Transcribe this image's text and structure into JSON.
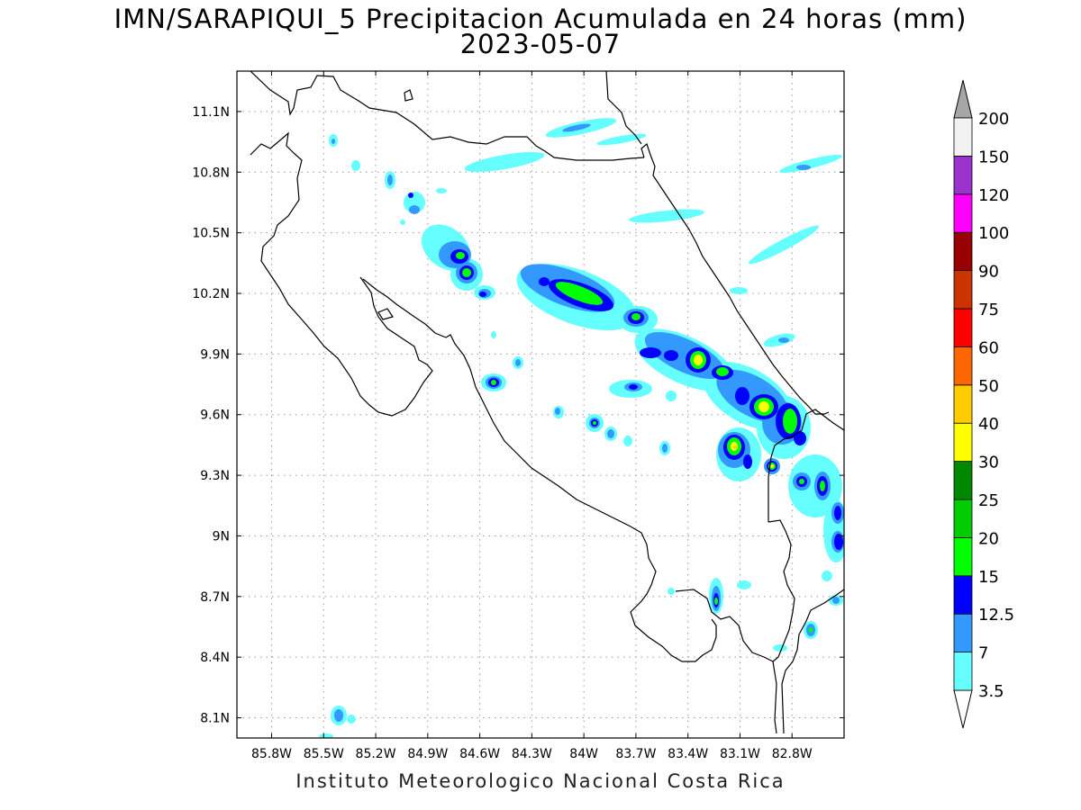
{
  "title": {
    "line1": "IMN/SARAPIQUI_5 Precipitacion Acumulada en 24 horas (mm)",
    "line2": "2023-05-07"
  },
  "footer": "Instituto Meteorologico Nacional Costa Rica",
  "map": {
    "lon_range": [
      -86.0,
      -82.5
    ],
    "lat_range": [
      8.0,
      11.3
    ],
    "x_ticks": [
      "85.8W",
      "85.5W",
      "85.2W",
      "84.9W",
      "84.6W",
      "84.3W",
      "84W",
      "83.7W",
      "83.4W",
      "83.1W",
      "82.8W"
    ],
    "y_ticks": [
      "11.1N",
      "10.8N",
      "10.5N",
      "10.2N",
      "9.9N",
      "9.6N",
      "9.3N",
      "9N",
      "8.7N",
      "8.4N",
      "8.1N"
    ],
    "grid": "dotted"
  },
  "colorbar": {
    "levels": [
      "3.5",
      "7",
      "12.5",
      "15",
      "20",
      "25",
      "30",
      "40",
      "50",
      "60",
      "75",
      "90",
      "100",
      "120",
      "150",
      "200"
    ],
    "colors": [
      "#66ffff",
      "#3399ff",
      "#0000ff",
      "#00ff00",
      "#00cc00",
      "#008800",
      "#ffff00",
      "#ffcc00",
      "#ff6600",
      "#ff0000",
      "#cc3300",
      "#990000",
      "#ff00ff",
      "#9933cc",
      "#f2f2f2"
    ],
    "over_color": "#a6a6a6",
    "under_color": "#ffffff"
  }
}
